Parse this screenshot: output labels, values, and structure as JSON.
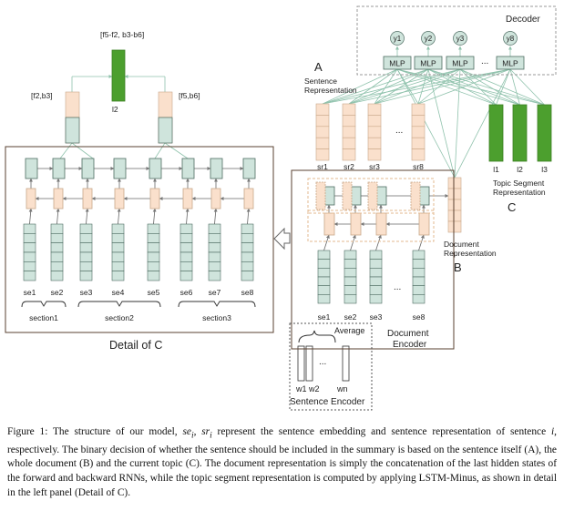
{
  "decoder": {
    "title": "Decoder",
    "outputs": [
      "y1",
      "y2",
      "y3",
      "y8"
    ],
    "mlp_label": "MLP",
    "ellipsis": "..."
  },
  "panel_a": {
    "letter": "A",
    "label_line1": "Sentence",
    "label_line2": "Representation"
  },
  "panel_b": {
    "letter": "B",
    "doc_line1": "Document",
    "doc_line2": "Representation"
  },
  "panel_c": {
    "letter": "C",
    "topic_line1": "Topic Segment",
    "topic_line2": "Representation",
    "topic_labels": [
      "l1",
      "l2",
      "l3"
    ]
  },
  "sentence_reps": [
    "sr1",
    "sr2",
    "sr3",
    "sr8"
  ],
  "document_encoder": {
    "sentence_labels": [
      "se1",
      "se2",
      "se3",
      "se8"
    ],
    "title_line1": "Document",
    "title_line2": "Encoder"
  },
  "sentence_encoder": {
    "average_label": "Average",
    "words": [
      "w1 w2",
      "wn"
    ],
    "title": "Sentence Encoder",
    "ellipsis": "..."
  },
  "detail": {
    "title": "Detail of C",
    "top_label": "[f5-f2, b3-b6]",
    "top_caption": "l2",
    "left_label": "[f2,b3]",
    "right_label": "[f5,b6]",
    "sentences": [
      "se1",
      "se2",
      "se3",
      "se4",
      "se5",
      "se6",
      "se7",
      "se8"
    ],
    "sections": [
      "section1",
      "section2",
      "section3"
    ]
  },
  "caption": {
    "p1": "Figure 1: The structure of our model, ",
    "se": "se",
    "sub_i": "i",
    "comma": ", ",
    "sr": "sr",
    "sub_i2": "i",
    "p2": " represent the sentence embedding and sentence representation of sentence ",
    "i": "i",
    "p3": ", respectively. The binary decision of whether the sentence should be included in the summary is based on the sentence itself (A), the whole document (B) and the current topic (C). The document representation is simply the concatenation of the last hidden states of the forward and backward RNNs, while the topic segment representation is computed by applying LSTM-Minus, as shown in detail in the left panel (Detail of C)."
  },
  "colors": {
    "peach": "#fae0cc",
    "peach_stroke": "#c8a789",
    "teal": "#cfe4dc",
    "teal_stroke": "#4d6b61",
    "green": "#4c9f2e",
    "arrow_green": "#8fc2ac",
    "arrow_dark": "#666666"
  }
}
